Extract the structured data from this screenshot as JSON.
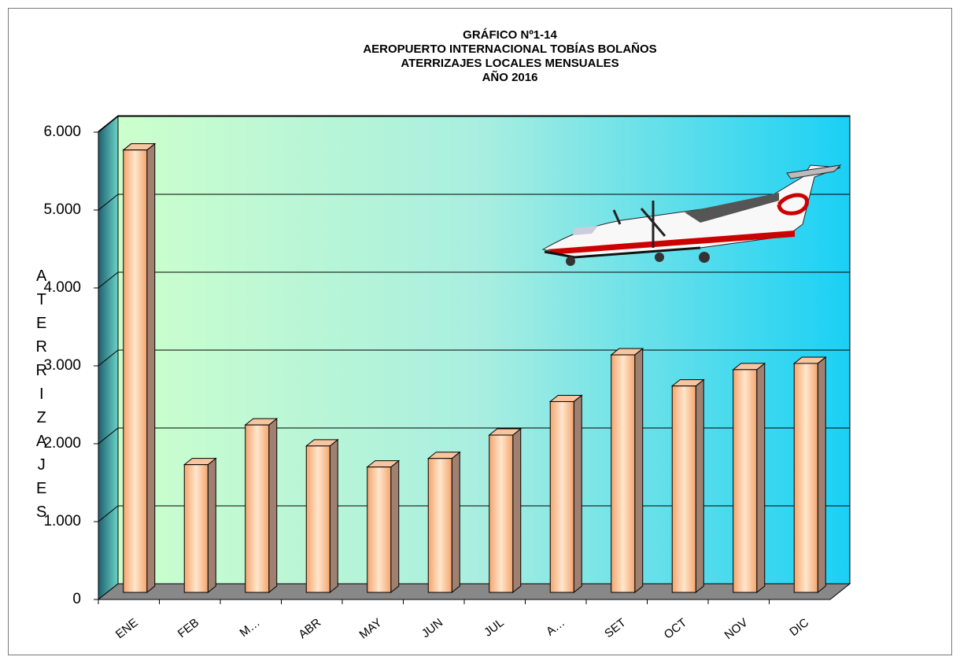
{
  "chart_data": {
    "type": "bar3d",
    "title": [
      "GRÁFICO Nº1-14",
      "AEROPUERTO INTERNACIONAL TOBÍAS BOLAÑOS",
      "ATERRIZAJES LOCALES MENSUALES",
      "AÑO 2016"
    ],
    "y_label": "ATERRIZAJES",
    "categories": [
      "ENE",
      "FEB",
      "M…",
      "ABR",
      "MAY",
      "JUN",
      "JUL",
      "A…",
      "SET",
      "OCT",
      "NOV",
      "DIC"
    ],
    "values": [
      5680,
      1640,
      2150,
      1880,
      1610,
      1720,
      2020,
      2450,
      3050,
      2650,
      2860,
      2940
    ],
    "ylim": [
      0,
      6000
    ],
    "yticks": [
      0,
      {
        "value": 1000,
        "label": "1.000"
      },
      {
        "value": 2000,
        "label": "2.000"
      },
      {
        "value": 3000,
        "label": "3.000"
      },
      {
        "value": 4000,
        "label": "4.000"
      },
      {
        "value": 5000,
        "label": "5.000"
      },
      {
        "value": 6000,
        "label": "6.000"
      }
    ],
    "grid": true
  }
}
